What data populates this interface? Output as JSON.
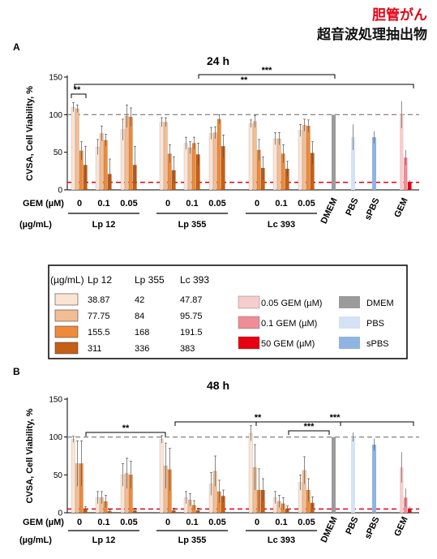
{
  "header": {
    "title_jp": "胆管がん",
    "subtitle_jp": "超音波処理抽出物"
  },
  "colors": {
    "conc1": "#fbe4d4",
    "conc2": "#f3bd94",
    "conc3": "#ee8a3a",
    "conc4": "#c65f16",
    "gem_low": "#f7cccc",
    "gem_mid": "#ee8d97",
    "gem_high": "#e60012",
    "dmem": "#9b9b9b",
    "pbs": "#d5e2f5",
    "spbs": "#8fb4e2",
    "ref100": "#8c8c8c",
    "refline": "#e60012"
  },
  "legend": {
    "header_unit": "(µg/mL)",
    "headers": [
      "Lp 12",
      "Lp 355",
      "Lc 393"
    ],
    "rows": [
      {
        "vals": [
          "38.87",
          "42",
          "47.87"
        ]
      },
      {
        "vals": [
          "77.75",
          "84",
          "95.75"
        ]
      },
      {
        "vals": [
          "155.5",
          "168",
          "191.5"
        ]
      },
      {
        "vals": [
          "311",
          "336",
          "383"
        ]
      }
    ],
    "gem_items": [
      "0.05 GEM (µM)",
      "0.1 GEM (µM)",
      "50 GEM (µM)"
    ],
    "ctrl_items": [
      "DMEM",
      "PBS",
      "sPBS"
    ]
  },
  "chart_data": [
    {
      "panel": "A",
      "title": "24 h",
      "type": "bar",
      "ylabel": "CVSA, Cell Viability, %",
      "ylim": [
        0,
        150
      ],
      "yticks": [
        "0",
        "50",
        "100",
        "150"
      ],
      "gem_axis_label": "GEM (µM)",
      "conc_axis_label": "(µg/mL)",
      "gem_levels": [
        "0",
        "0.1",
        "0.05"
      ],
      "extracts": [
        "Lp 12",
        "Lp 355",
        "Lc 393"
      ],
      "controls": [
        "DMEM",
        "PBS",
        "sPBS",
        "GEM"
      ],
      "extract_values": [
        [
          [
            110,
            108,
            52,
            33
          ],
          [
            57,
            75,
            66,
            21
          ],
          [
            80,
            98,
            97,
            33
          ]
        ],
        [
          [
            90,
            90,
            48,
            26
          ],
          [
            62,
            56,
            62,
            47
          ],
          [
            75,
            76,
            94,
            58
          ]
        ],
        [
          [
            88,
            91,
            53,
            29
          ],
          [
            68,
            68,
            48,
            28
          ],
          [
            79,
            86,
            85,
            49
          ]
        ]
      ],
      "extract_errors": [
        [
          [
            6,
            5,
            12,
            25
          ],
          [
            10,
            10,
            8,
            20
          ],
          [
            14,
            15,
            12,
            25
          ]
        ],
        [
          [
            6,
            6,
            12,
            18
          ],
          [
            8,
            8,
            8,
            15
          ],
          [
            8,
            8,
            6,
            15
          ]
        ],
        [
          [
            5,
            8,
            14,
            15
          ],
          [
            8,
            8,
            12,
            10
          ],
          [
            8,
            8,
            8,
            15
          ]
        ]
      ],
      "control_values": {
        "dmem": 100,
        "pbs": 70,
        "spbs": 70,
        "gem": [
          100,
          43,
          10
        ]
      },
      "control_errors": {
        "dmem": 0,
        "pbs": 17,
        "spbs": 8,
        "gem": [
          18,
          10,
          3
        ]
      },
      "ref_lines": [
        100,
        10
      ],
      "significance": [
        {
          "label": "**",
          "from": "Lp 12 group",
          "to": "Lp 12 group"
        },
        {
          "label": "***",
          "from": "Lp 355",
          "to": "GEM"
        },
        {
          "label": "**",
          "from": "Lp 12",
          "to": "GEM"
        }
      ]
    },
    {
      "panel": "B",
      "title": "48 h",
      "type": "bar",
      "ylabel": "CVSA, Cell Viability, %",
      "ylim": [
        0,
        150
      ],
      "yticks": [
        "0",
        "50",
        "100",
        "150"
      ],
      "gem_axis_label": "GEM (µM)",
      "conc_axis_label": "(µg/mL)",
      "gem_levels": [
        "0",
        "0.1",
        "0.05"
      ],
      "extracts": [
        "Lp 12",
        "Lp 355",
        "Lc 393"
      ],
      "controls": [
        "DMEM",
        "PBS",
        "sPBS",
        "GEM"
      ],
      "extract_values": [
        [
          [
            97,
            65,
            65,
            5
          ],
          [
            20,
            20,
            15,
            2
          ],
          [
            50,
            52,
            50,
            3
          ]
        ],
        [
          [
            97,
            62,
            57,
            3
          ],
          [
            20,
            17,
            10,
            3
          ],
          [
            38,
            55,
            28,
            22
          ]
        ],
        [
          [
            105,
            60,
            30,
            30
          ],
          [
            20,
            15,
            12,
            5
          ],
          [
            40,
            56,
            30,
            13
          ]
        ]
      ],
      "extract_errors": [
        [
          [
            4,
            30,
            30,
            3
          ],
          [
            8,
            8,
            8,
            2
          ],
          [
            15,
            20,
            18,
            3
          ]
        ],
        [
          [
            5,
            30,
            28,
            3
          ],
          [
            8,
            8,
            6,
            3
          ],
          [
            15,
            20,
            15,
            8
          ]
        ],
        [
          [
            10,
            30,
            28,
            15
          ],
          [
            8,
            8,
            8,
            4
          ],
          [
            10,
            18,
            15,
            8
          ]
        ]
      ],
      "control_values": {
        "dmem": 100,
        "pbs": 100,
        "spbs": 90,
        "gem": [
          60,
          20,
          5
        ]
      },
      "control_errors": {
        "dmem": 0,
        "pbs": 6,
        "spbs": 8,
        "gem": [
          20,
          12,
          3
        ]
      },
      "ref_lines": [
        100,
        5
      ],
      "significance": [
        {
          "label": "**",
          "from": "Lp 12",
          "to": "Lp 355"
        },
        {
          "label": "**",
          "from": "Lp 355",
          "to": "GEM"
        },
        {
          "label": "***",
          "from": "Lc 393",
          "to": "GEM"
        },
        {
          "label": "***",
          "from": "Lc 393 0.1",
          "to": "Lc 393 0.05"
        }
      ]
    }
  ]
}
